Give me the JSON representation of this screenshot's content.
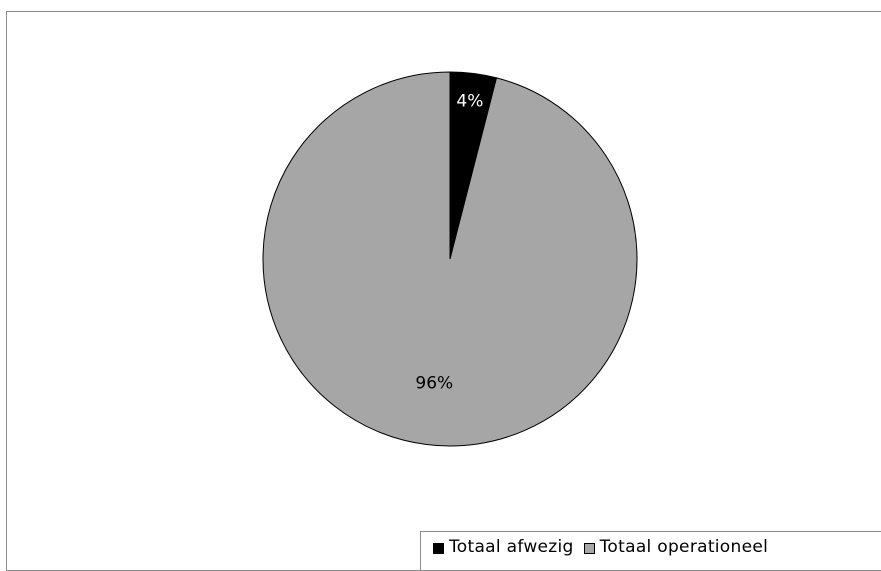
{
  "chart_data": {
    "type": "pie",
    "title": "",
    "start_angle_deg": 0,
    "direction": "clockwise",
    "slices": [
      {
        "name": "Totaal afwezig",
        "value": 4,
        "label": "4%",
        "color": "#000000",
        "label_color": "#ffffff"
      },
      {
        "name": "Totaal operationeel",
        "value": 96,
        "label": "96%",
        "color": "#a6a6a6",
        "label_color": "#000000"
      }
    ],
    "legend": {
      "placement": "bottom-right",
      "entries": [
        "Totaal afwezig",
        "Totaal operationeel"
      ]
    }
  }
}
